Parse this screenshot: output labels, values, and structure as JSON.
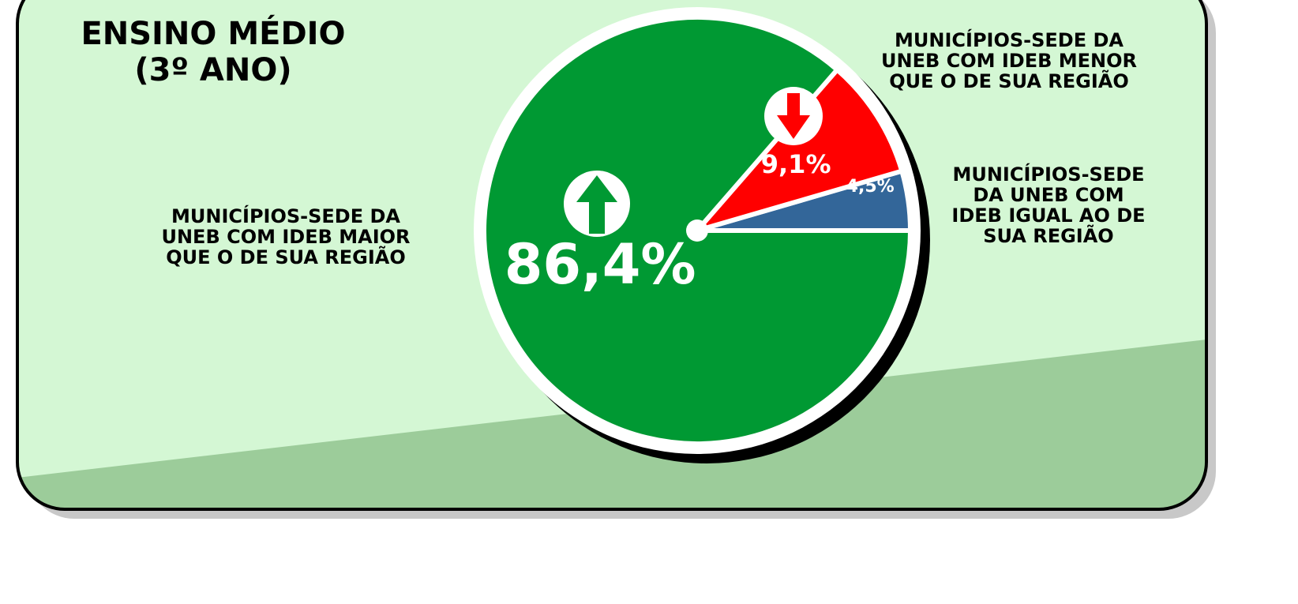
{
  "chart_data": {
    "type": "pie",
    "title": "ENSINO MÉDIO\n(3º ANO)",
    "categories": [
      "MUNICÍPIOS-SEDE\nDA UNEB COM\nIDEB IGUAL AO DE\nSUA REGIÃO",
      "MUNICÍPIOS-SEDE DA\nUNEB COM IDEB MENOR\nQUE O DE SUA REGIÃO",
      "MUNICÍPIOS-SEDE DA\nUNEB COM IDEB MAIOR\nQUE O DE SUA REGIÃO"
    ],
    "values": [
      4.5,
      9.1,
      86.4
    ],
    "value_labels": [
      "4,5%",
      "9,1%",
      "86,4%"
    ],
    "colors": [
      "#336699",
      "#ff0000",
      "#009933"
    ]
  }
}
